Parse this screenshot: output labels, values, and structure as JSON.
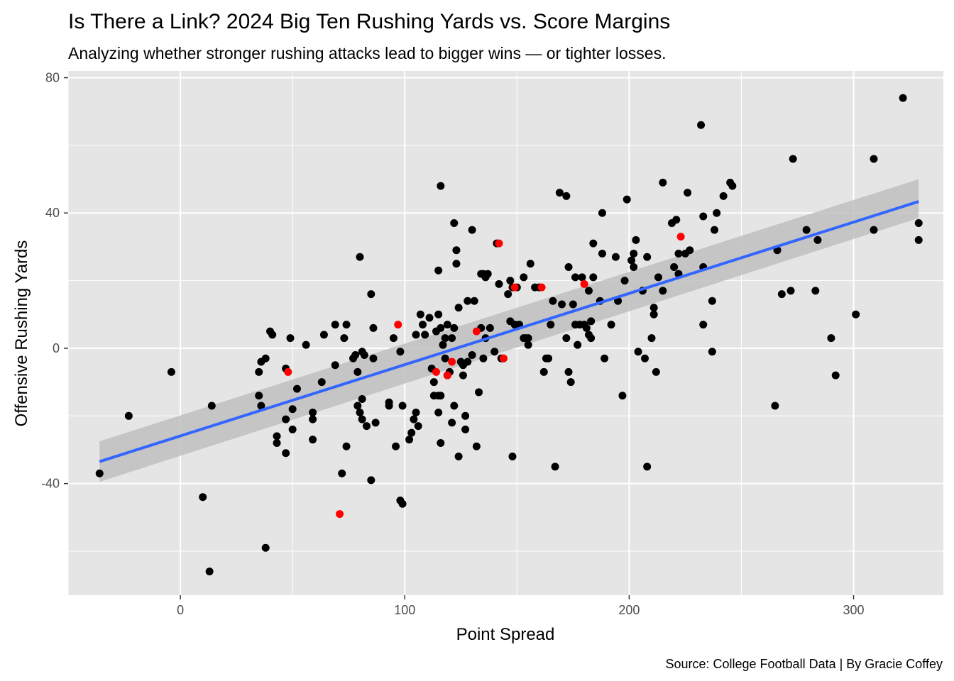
{
  "chart_data": {
    "type": "scatter",
    "title": "Is There a Link? 2024 Big Ten Rushing Yards vs. Score Margins",
    "subtitle": "Analyzing whether stronger rushing attacks lead to bigger wins — or tighter losses.",
    "xlabel": "Point Spread",
    "ylabel": "Offensive Rushing Yards",
    "caption": "Source: College Football Data | By Gracie Coffey",
    "xlim": [
      -50,
      340
    ],
    "ylim": [
      -73,
      82
    ],
    "x_ticks": [
      0,
      100,
      200,
      300
    ],
    "y_ticks": [
      -40,
      0,
      40,
      80
    ],
    "grid": true,
    "colors": {
      "panel": "#e5e5e5",
      "grid": "#ffffff",
      "point": "#000000",
      "highlight": "#ff0000",
      "trend_line": "#3366ff",
      "confidence_band": "#bfbfbf"
    },
    "trend": {
      "x": [
        -36,
        329
      ],
      "y": [
        -33.5,
        43.4
      ],
      "ci_lower": [
        -39.5,
        38.5
      ],
      "ci_upper": [
        -27.5,
        50.0
      ]
    },
    "series": [
      {
        "color": "#000000",
        "points": [
          [
            -36,
            -37
          ],
          [
            -23,
            -20
          ],
          [
            -4,
            -7
          ],
          [
            10,
            -44
          ],
          [
            13,
            -66
          ],
          [
            14,
            -17
          ],
          [
            35,
            -14
          ],
          [
            35,
            -7
          ],
          [
            36,
            -4
          ],
          [
            36,
            -17
          ],
          [
            38,
            -3
          ],
          [
            38,
            -59
          ],
          [
            40,
            5
          ],
          [
            41,
            4
          ],
          [
            43,
            -26
          ],
          [
            43,
            -28
          ],
          [
            47,
            -21
          ],
          [
            47,
            -31
          ],
          [
            47,
            -6
          ],
          [
            49,
            3
          ],
          [
            50,
            -18
          ],
          [
            50,
            -24
          ],
          [
            52,
            -12
          ],
          [
            56,
            1
          ],
          [
            59,
            -19
          ],
          [
            59,
            -21
          ],
          [
            59,
            -27
          ],
          [
            63,
            -10
          ],
          [
            64,
            4
          ],
          [
            69,
            7
          ],
          [
            69,
            -5
          ],
          [
            72,
            -37
          ],
          [
            73,
            3
          ],
          [
            74,
            7
          ],
          [
            74,
            -29
          ],
          [
            77,
            -3
          ],
          [
            78,
            -2
          ],
          [
            79,
            -7
          ],
          [
            79,
            -17
          ],
          [
            80,
            -19
          ],
          [
            80,
            27
          ],
          [
            81,
            -1
          ],
          [
            81,
            -21
          ],
          [
            81,
            -15
          ],
          [
            82,
            -2
          ],
          [
            83,
            -23
          ],
          [
            85,
            16
          ],
          [
            85,
            -39
          ],
          [
            86,
            6
          ],
          [
            86,
            -3
          ],
          [
            87,
            -22
          ],
          [
            93,
            -16
          ],
          [
            93,
            -17
          ],
          [
            95,
            3
          ],
          [
            96,
            -29
          ],
          [
            98,
            -1
          ],
          [
            98,
            -45
          ],
          [
            99,
            -46
          ],
          [
            99,
            -17
          ],
          [
            102,
            -27
          ],
          [
            103,
            -25
          ],
          [
            104,
            -21
          ],
          [
            105,
            4
          ],
          [
            105,
            -19
          ],
          [
            106,
            -23
          ],
          [
            107,
            10
          ],
          [
            108,
            7
          ],
          [
            109,
            4
          ],
          [
            111,
            9
          ],
          [
            112,
            -6
          ],
          [
            113,
            -10
          ],
          [
            113,
            -14
          ],
          [
            114,
            5
          ],
          [
            115,
            -14
          ],
          [
            115,
            10
          ],
          [
            115,
            -19
          ],
          [
            115,
            23
          ],
          [
            116,
            -14
          ],
          [
            116,
            6
          ],
          [
            116,
            48
          ],
          [
            116,
            -28
          ],
          [
            117,
            1
          ],
          [
            118,
            3
          ],
          [
            118,
            -3
          ],
          [
            119,
            -8
          ],
          [
            119,
            7
          ],
          [
            120,
            -7
          ],
          [
            121,
            -22
          ],
          [
            121,
            3
          ],
          [
            122,
            6
          ],
          [
            122,
            37
          ],
          [
            122,
            -17
          ],
          [
            123,
            29
          ],
          [
            123,
            25
          ],
          [
            124,
            12
          ],
          [
            124,
            -32
          ],
          [
            125,
            -4
          ],
          [
            126,
            -8
          ],
          [
            126,
            -5
          ],
          [
            127,
            -20
          ],
          [
            127,
            -24
          ],
          [
            128,
            14
          ],
          [
            128,
            -4
          ],
          [
            130,
            -2
          ],
          [
            130,
            35
          ],
          [
            131,
            14
          ],
          [
            132,
            -29
          ],
          [
            133,
            -13
          ],
          [
            134,
            6
          ],
          [
            134,
            22
          ],
          [
            135,
            -3
          ],
          [
            135,
            22
          ],
          [
            136,
            3
          ],
          [
            136,
            21
          ],
          [
            137,
            22
          ],
          [
            138,
            6
          ],
          [
            140,
            -1
          ],
          [
            141,
            31
          ],
          [
            142,
            19
          ],
          [
            143,
            -3
          ],
          [
            144,
            -3
          ],
          [
            146,
            16
          ],
          [
            147,
            20
          ],
          [
            147,
            8
          ],
          [
            148,
            18
          ],
          [
            148,
            -32
          ],
          [
            149,
            7
          ],
          [
            150,
            18
          ],
          [
            151,
            7
          ],
          [
            153,
            21
          ],
          [
            153,
            3
          ],
          [
            154,
            3
          ],
          [
            155,
            1
          ],
          [
            155,
            3
          ],
          [
            156,
            25
          ],
          [
            158,
            18
          ],
          [
            160,
            18
          ],
          [
            162,
            -7
          ],
          [
            163,
            -3
          ],
          [
            164,
            -3
          ],
          [
            165,
            7
          ],
          [
            166,
            14
          ],
          [
            167,
            -35
          ],
          [
            169,
            46
          ],
          [
            170,
            13
          ],
          [
            172,
            3
          ],
          [
            172,
            45
          ],
          [
            173,
            -7
          ],
          [
            173,
            24
          ],
          [
            174,
            -10
          ],
          [
            175,
            13
          ],
          [
            176,
            21
          ],
          [
            176,
            7
          ],
          [
            177,
            1
          ],
          [
            178,
            7
          ],
          [
            179,
            21
          ],
          [
            180,
            7
          ],
          [
            181,
            6
          ],
          [
            182,
            17
          ],
          [
            182,
            4
          ],
          [
            183,
            8
          ],
          [
            183,
            3
          ],
          [
            184,
            21
          ],
          [
            184,
            31
          ],
          [
            187,
            14
          ],
          [
            188,
            40
          ],
          [
            188,
            28
          ],
          [
            189,
            -3
          ],
          [
            192,
            7
          ],
          [
            194,
            27
          ],
          [
            195,
            14
          ],
          [
            197,
            -14
          ],
          [
            198,
            20
          ],
          [
            199,
            44
          ],
          [
            201,
            26
          ],
          [
            202,
            24
          ],
          [
            202,
            28
          ],
          [
            203,
            32
          ],
          [
            204,
            -1
          ],
          [
            206,
            17
          ],
          [
            207,
            -3
          ],
          [
            208,
            27
          ],
          [
            208,
            -35
          ],
          [
            210,
            3
          ],
          [
            211,
            12
          ],
          [
            211,
            10
          ],
          [
            212,
            -7
          ],
          [
            213,
            21
          ],
          [
            215,
            49
          ],
          [
            215,
            17
          ],
          [
            219,
            37
          ],
          [
            220,
            24
          ],
          [
            221,
            38
          ],
          [
            222,
            28
          ],
          [
            222,
            22
          ],
          [
            225,
            28
          ],
          [
            226,
            46
          ],
          [
            227,
            29
          ],
          [
            232,
            66
          ],
          [
            233,
            39
          ],
          [
            233,
            7
          ],
          [
            233,
            24
          ],
          [
            237,
            14
          ],
          [
            237,
            -1
          ],
          [
            238,
            35
          ],
          [
            239,
            40
          ],
          [
            242,
            45
          ],
          [
            245,
            49
          ],
          [
            246,
            48
          ],
          [
            265,
            -17
          ],
          [
            266,
            29
          ],
          [
            268,
            16
          ],
          [
            272,
            17
          ],
          [
            273,
            56
          ],
          [
            279,
            35
          ],
          [
            283,
            17
          ],
          [
            284,
            32
          ],
          [
            290,
            3
          ],
          [
            292,
            -8
          ],
          [
            301,
            10
          ],
          [
            309,
            56
          ],
          [
            309,
            35
          ],
          [
            322,
            74
          ],
          [
            329,
            37
          ],
          [
            329,
            32
          ]
        ]
      },
      {
        "color": "#ff0000",
        "points": [
          [
            48,
            -7
          ],
          [
            71,
            -49
          ],
          [
            97,
            7
          ],
          [
            114,
            -7
          ],
          [
            119,
            -8
          ],
          [
            121,
            -4
          ],
          [
            132,
            5
          ],
          [
            142,
            31
          ],
          [
            144,
            -3
          ],
          [
            149,
            18
          ],
          [
            161,
            18
          ],
          [
            180,
            19
          ],
          [
            223,
            33
          ]
        ]
      }
    ]
  }
}
